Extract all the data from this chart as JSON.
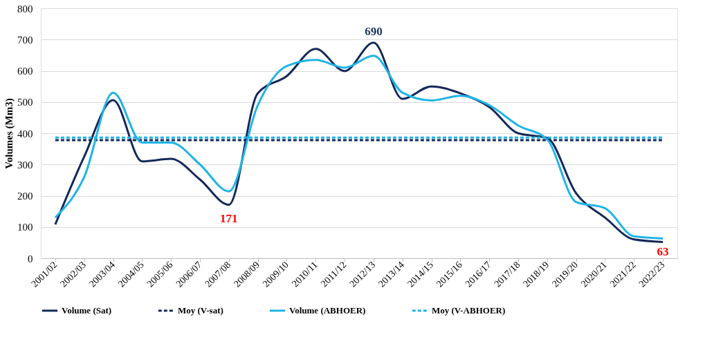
{
  "chart_data": {
    "type": "line",
    "ylabel": "Volumes (Mm3)",
    "categories": [
      "2001/02",
      "2002/03",
      "2003/04",
      "2004/05",
      "2005/06",
      "2006/07",
      "2007/08",
      "2008/09",
      "2009/10",
      "2010/11",
      "2011/12",
      "2012/13",
      "2013/14",
      "2014/15",
      "2015/16",
      "2016/17",
      "2017/18",
      "2018/19",
      "2019/20",
      "2020/21",
      "2021/22",
      "2022/23"
    ],
    "series": [
      {
        "name": "Volume (Sat)",
        "color": "#14285a",
        "line_style": "solid",
        "values": [
          108,
          325,
          506,
          310,
          318,
          252,
          171,
          528,
          583,
          670,
          599,
          690,
          510,
          550,
          528,
          484,
          400,
          385,
          208,
          130,
          60,
          52
        ]
      },
      {
        "name": "Moy (V-sat)",
        "color": "#14285a",
        "line_style": "dashed",
        "values": [
          378,
          378,
          378,
          378,
          378,
          378,
          378,
          378,
          378,
          378,
          378,
          378,
          378,
          378,
          378,
          378,
          378,
          378,
          378,
          378,
          378,
          378
        ]
      },
      {
        "name": "Volume (ABHOER)",
        "color": "#1eb4e6",
        "line_style": "solid",
        "values": [
          130,
          260,
          530,
          370,
          370,
          300,
          214,
          490,
          615,
          635,
          610,
          648,
          530,
          505,
          520,
          490,
          425,
          380,
          180,
          160,
          70,
          63
        ]
      },
      {
        "name": "Moy (V-ABHOER)",
        "color": "#1eb4e6",
        "line_style": "dashed",
        "values": [
          386,
          386,
          386,
          386,
          386,
          386,
          386,
          386,
          386,
          386,
          386,
          386,
          386,
          386,
          386,
          386,
          386,
          386,
          386,
          386,
          386,
          386
        ]
      }
    ],
    "ylim": [
      0,
      800
    ],
    "yticks": [
      0,
      100,
      200,
      300,
      400,
      500,
      600,
      700,
      800
    ],
    "grid": "y",
    "legend": "bottom",
    "marker": "none",
    "annotations": [
      {
        "text": "690",
        "x": "2012/13",
        "y": 690
      },
      {
        "text": "171",
        "x": "2007/08",
        "y": 171
      },
      {
        "text": "63",
        "x": "2022/23",
        "y": 63
      }
    ]
  }
}
